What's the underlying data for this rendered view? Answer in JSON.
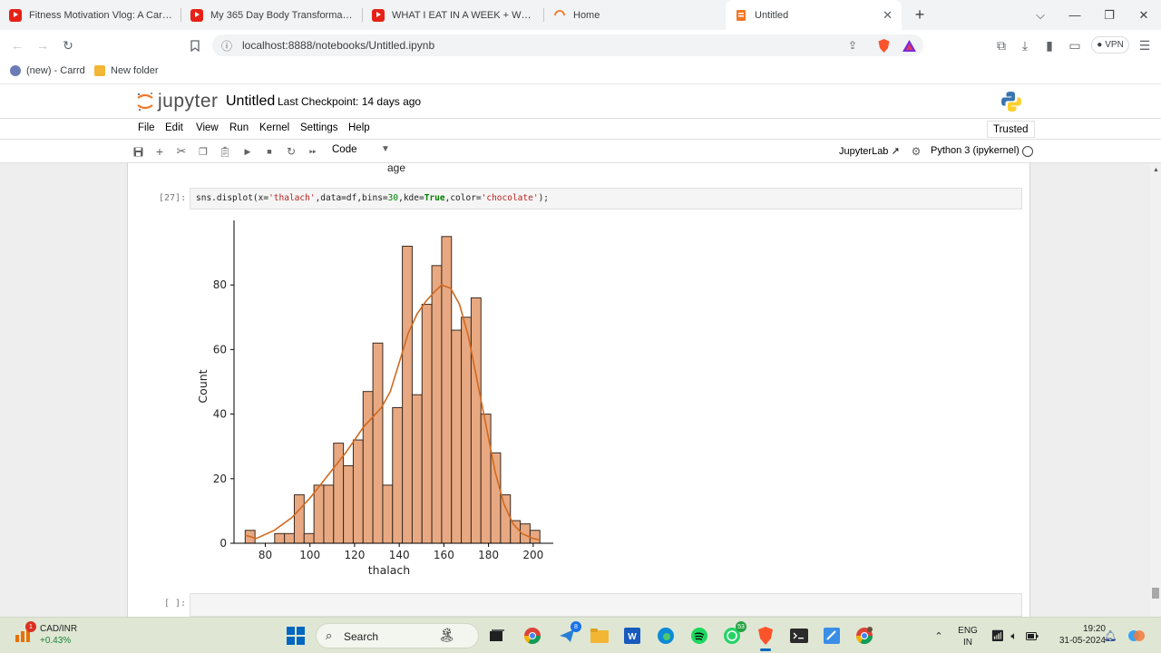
{
  "browser": {
    "tabs": [
      {
        "title": "Fitness Motivation Vlog: A Cardio Da",
        "icon": "youtube-icon"
      },
      {
        "title": "My 365 Day Body Transformation - Y",
        "icon": "youtube-icon"
      },
      {
        "title": "WHAT I EAT IN A WEEK + WORKOUT",
        "icon": "youtube-icon"
      },
      {
        "title": "Home",
        "icon": "jupyter-loading-icon"
      },
      {
        "title": "Untitled",
        "icon": "jupyter-notebook-icon"
      }
    ],
    "url": "localhost:8888/notebooks/Untitled.ipynb",
    "vpn_label": "VPN",
    "bookmarks": [
      {
        "label": "(new) - Carrd"
      },
      {
        "label": "New folder"
      }
    ]
  },
  "jupyter": {
    "logo_text": "jupyter",
    "notebook_title": "Untitled",
    "checkpoint": "Last Checkpoint: 14 days ago",
    "menu": [
      "File",
      "Edit",
      "View",
      "Run",
      "Kernel",
      "Settings",
      "Help"
    ],
    "trusted": "Trusted",
    "cell_type": "Code",
    "jupyterlab_link": "JupyterLab",
    "kernel": "Python 3 (ipykernel)",
    "prev_output_label": "age",
    "cell_prompt": "[27]:",
    "empty_prompt": "[ ]:",
    "code": {
      "p1": "sns.displot(x=",
      "s1": "'thalach'",
      "p2": ",data=df,bins=",
      "n1": "30",
      "p3": ",kde=",
      "k1": "True",
      "p4": ",color=",
      "s2": "'chocolate'",
      "p5": ");"
    }
  },
  "chart_data": {
    "type": "bar",
    "subtype": "histogram_with_kde",
    "xlabel": "thalach",
    "ylabel": "Count",
    "xlim": [
      66,
      209
    ],
    "ylim": [
      0,
      100
    ],
    "xticks": [
      80,
      100,
      120,
      140,
      160,
      180,
      200
    ],
    "yticks": [
      0,
      20,
      40,
      60,
      80
    ],
    "bar_color": "#e8a982",
    "edge_color": "#3a2a20",
    "kde_color": "#d2691e",
    "bin_start": 71,
    "bin_width": 4.4,
    "values": [
      4,
      0,
      0,
      3,
      3,
      15,
      3,
      18,
      18,
      31,
      24,
      32,
      47,
      62,
      18,
      42,
      92,
      46,
      74,
      86,
      95,
      66,
      70,
      76,
      40,
      28,
      15,
      7,
      6,
      4
    ],
    "kde": [
      [
        71,
        2.5
      ],
      [
        76,
        1.5
      ],
      [
        84,
        4
      ],
      [
        92,
        8
      ],
      [
        100,
        14
      ],
      [
        108,
        21
      ],
      [
        116,
        28
      ],
      [
        124,
        36
      ],
      [
        132,
        42
      ],
      [
        136,
        47
      ],
      [
        140,
        56
      ],
      [
        144,
        65
      ],
      [
        148,
        71
      ],
      [
        152,
        75
      ],
      [
        156,
        78
      ],
      [
        159,
        80
      ],
      [
        163,
        79
      ],
      [
        167,
        74
      ],
      [
        171,
        64
      ],
      [
        175,
        50
      ],
      [
        179,
        36
      ],
      [
        183,
        22
      ],
      [
        187,
        12
      ],
      [
        191,
        6
      ],
      [
        195,
        3
      ],
      [
        200,
        1.5
      ],
      [
        203,
        1
      ]
    ]
  },
  "taskbar": {
    "ticker_name": "CAD/INR",
    "ticker_change": "+0.43%",
    "ticker_badge": "1",
    "search_label": "Search",
    "telegram_badge": "8",
    "whatsapp_badge": "53",
    "lang_line1": "ENG",
    "lang_line2": "IN",
    "time": "19:20",
    "date": "31-05-2024"
  }
}
